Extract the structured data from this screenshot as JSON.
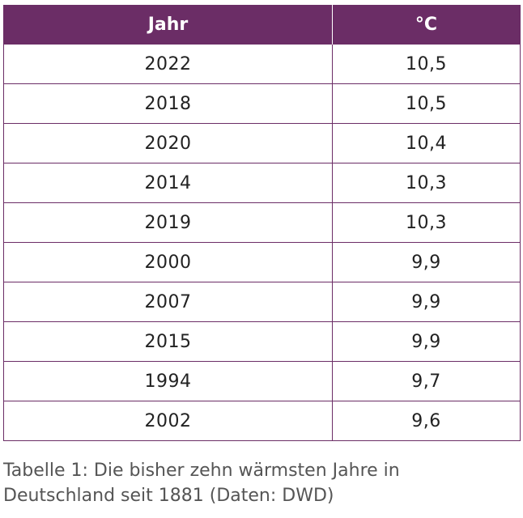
{
  "table": {
    "headers": [
      "Jahr",
      "°C"
    ],
    "rows": [
      [
        "2022",
        "10,5"
      ],
      [
        "2018",
        "10,5"
      ],
      [
        "2020",
        "10,4"
      ],
      [
        "2014",
        "10,3"
      ],
      [
        "2019",
        "10,3"
      ],
      [
        "2000",
        "9,9"
      ],
      [
        "2007",
        "9,9"
      ],
      [
        "2015",
        "9,9"
      ],
      [
        "1994",
        "9,7"
      ],
      [
        "2002",
        "9,6"
      ]
    ],
    "header_color": "#6b2d66"
  },
  "caption": {
    "line1": "Tabelle 1: Die bisher zehn wärmsten Jahre in",
    "line2": "Deutschland seit 1881 (Daten: DWD)"
  }
}
